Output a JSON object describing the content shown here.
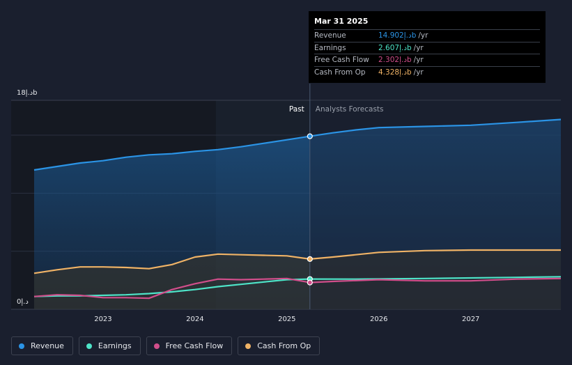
{
  "chart_data": {
    "type": "line",
    "x_ticks": [
      "2023",
      "2024",
      "2025",
      "2026",
      "2027"
    ],
    "y_ticks": [
      {
        "value": 18,
        "label": "18د.إb"
      },
      {
        "value": 0,
        "label": "0د.إ"
      }
    ],
    "ylim": [
      0,
      18
    ],
    "xlim": [
      2022.0,
      2027.98
    ],
    "divider_x": 2025.25,
    "past_label": "Past",
    "forecast_label": "Analysts Forecasts",
    "series": [
      {
        "name": "Revenue",
        "color": "#2b94e6",
        "points": [
          [
            2022.25,
            12.0
          ],
          [
            2022.5,
            12.3
          ],
          [
            2022.75,
            12.6
          ],
          [
            2023.0,
            12.8
          ],
          [
            2023.25,
            13.1
          ],
          [
            2023.5,
            13.3
          ],
          [
            2023.75,
            13.4
          ],
          [
            2024.0,
            13.6
          ],
          [
            2024.25,
            13.75
          ],
          [
            2024.5,
            14.0
          ],
          [
            2024.75,
            14.3
          ],
          [
            2025.0,
            14.6
          ],
          [
            2025.25,
            14.902
          ],
          [
            2025.5,
            15.2
          ],
          [
            2025.75,
            15.45
          ],
          [
            2026.0,
            15.65
          ],
          [
            2026.5,
            15.75
          ],
          [
            2027.0,
            15.85
          ],
          [
            2027.5,
            16.1
          ],
          [
            2027.98,
            16.35
          ]
        ]
      },
      {
        "name": "Earnings",
        "color": "#4ee4c8",
        "points": [
          [
            2022.25,
            1.1
          ],
          [
            2022.5,
            1.15
          ],
          [
            2022.75,
            1.15
          ],
          [
            2023.0,
            1.2
          ],
          [
            2023.25,
            1.25
          ],
          [
            2023.5,
            1.35
          ],
          [
            2023.75,
            1.5
          ],
          [
            2024.0,
            1.7
          ],
          [
            2024.25,
            1.95
          ],
          [
            2024.5,
            2.15
          ],
          [
            2024.75,
            2.35
          ],
          [
            2025.0,
            2.55
          ],
          [
            2025.25,
            2.607
          ],
          [
            2025.75,
            2.6
          ],
          [
            2026.5,
            2.65
          ],
          [
            2027.5,
            2.75
          ],
          [
            2027.98,
            2.8
          ]
        ]
      },
      {
        "name": "Free Cash Flow",
        "color": "#d14e8b",
        "points": [
          [
            2022.25,
            1.1
          ],
          [
            2022.5,
            1.25
          ],
          [
            2022.75,
            1.2
          ],
          [
            2023.0,
            1.0
          ],
          [
            2023.25,
            1.0
          ],
          [
            2023.5,
            0.95
          ],
          [
            2023.75,
            1.7
          ],
          [
            2024.0,
            2.2
          ],
          [
            2024.25,
            2.6
          ],
          [
            2024.5,
            2.55
          ],
          [
            2024.75,
            2.6
          ],
          [
            2025.0,
            2.65
          ],
          [
            2025.25,
            2.302
          ],
          [
            2025.5,
            2.4
          ],
          [
            2026.0,
            2.55
          ],
          [
            2026.5,
            2.45
          ],
          [
            2027.0,
            2.45
          ],
          [
            2027.5,
            2.6
          ],
          [
            2027.98,
            2.65
          ]
        ]
      },
      {
        "name": "Cash From Op",
        "color": "#f0b366",
        "points": [
          [
            2022.25,
            3.1
          ],
          [
            2022.5,
            3.4
          ],
          [
            2022.75,
            3.65
          ],
          [
            2023.0,
            3.65
          ],
          [
            2023.25,
            3.6
          ],
          [
            2023.5,
            3.5
          ],
          [
            2023.75,
            3.85
          ],
          [
            2024.0,
            4.5
          ],
          [
            2024.25,
            4.75
          ],
          [
            2024.5,
            4.7
          ],
          [
            2024.75,
            4.65
          ],
          [
            2025.0,
            4.6
          ],
          [
            2025.25,
            4.328
          ],
          [
            2025.5,
            4.5
          ],
          [
            2026.0,
            4.9
          ],
          [
            2026.5,
            5.05
          ],
          [
            2027.0,
            5.1
          ],
          [
            2027.5,
            5.1
          ],
          [
            2027.98,
            5.1
          ]
        ]
      }
    ]
  },
  "tooltip": {
    "date": "Mar 31 2025",
    "rows": [
      {
        "label": "Revenue",
        "value": "14.902د.إb",
        "unit": "/yr",
        "color": "#2b94e6"
      },
      {
        "label": "Earnings",
        "value": "2.607د.إb",
        "unit": "/yr",
        "color": "#4ee4c8"
      },
      {
        "label": "Free Cash Flow",
        "value": "2.302د.إb",
        "unit": "/yr",
        "color": "#d14e8b"
      },
      {
        "label": "Cash From Op",
        "value": "4.328د.إb",
        "unit": "/yr",
        "color": "#f0b366"
      }
    ]
  },
  "legend": [
    {
      "label": "Revenue",
      "color": "#2b94e6"
    },
    {
      "label": "Earnings",
      "color": "#4ee4c8"
    },
    {
      "label": "Free Cash Flow",
      "color": "#d14e8b"
    },
    {
      "label": "Cash From Op",
      "color": "#f0b366"
    }
  ]
}
